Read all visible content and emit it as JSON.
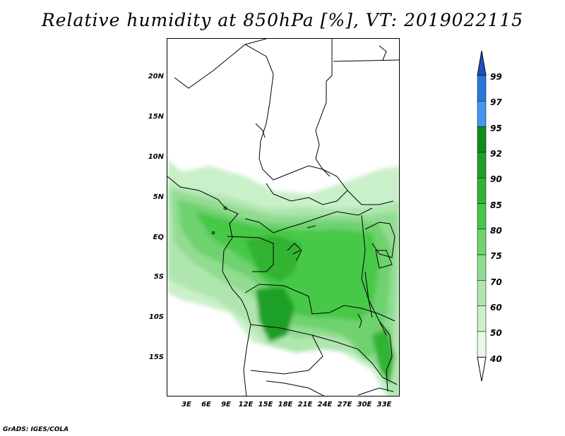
{
  "title": "Relative humidity at 850hPa [%], VT: 2019022115",
  "footer": "GrADS: IGES/COLA",
  "map": {
    "region": "Central Africa",
    "variable": "Relative humidity at 850hPa",
    "units": "%",
    "valid_time": "2019022115",
    "latitude_labels": [
      "20N",
      "15N",
      "10N",
      "5N",
      "EQ",
      "5S",
      "10S",
      "15S"
    ],
    "longitude_labels": [
      "3E",
      "6E",
      "9E",
      "12E",
      "15E",
      "18E",
      "21E",
      "24E",
      "27E",
      "30E",
      "33E"
    ]
  },
  "colorbar": {
    "levels": [
      "99",
      "97",
      "95",
      "92",
      "90",
      "85",
      "80",
      "75",
      "70",
      "60",
      "50",
      "40"
    ],
    "colors": [
      "#1e50c8",
      "#2878dc",
      "#4696f0",
      "#0f8c1e",
      "#1ea028",
      "#32b432",
      "#46c846",
      "#6ed26e",
      "#91dc91",
      "#afe6af",
      "#caf0ca",
      "#e6fae6"
    ]
  }
}
